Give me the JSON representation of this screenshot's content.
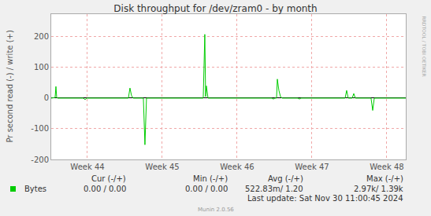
{
  "chart_data": {
    "type": "line",
    "title": "Disk throughput for /dev/zram0 - by month",
    "y_label": "Pr second read (-) / write (+)",
    "x": [
      44.016,
      44.068,
      44.079,
      44.089,
      44.1,
      44.447,
      44.468,
      44.489,
      45.047,
      45.068,
      45.089,
      45.111,
      45.247,
      45.268,
      45.289,
      46.047,
      46.068,
      46.079,
      46.089,
      46.111,
      46.963,
      46.984,
      47.005,
      47.026,
      47.037,
      47.058,
      47.079,
      47.1,
      47.311,
      47.332,
      47.353,
      47.942,
      47.963,
      47.984,
      48.037,
      48.058,
      48.079,
      48.289,
      48.311,
      48.332,
      48.753
    ],
    "series": [
      {
        "name": "Bytes",
        "color": "#00cc00",
        "values": [
          0,
          2,
          38,
          3,
          0,
          0,
          -5,
          0,
          0,
          33,
          8,
          0,
          0,
          -152,
          0,
          0,
          208,
          5,
          40,
          0,
          0,
          -3,
          0,
          0,
          62,
          25,
          5,
          0,
          0,
          -3,
          0,
          0,
          25,
          0,
          0,
          15,
          0,
          0,
          -40,
          0,
          0
        ]
      }
    ],
    "xlim": [
      44.016,
      48.753
    ],
    "xticks": [
      {
        "value": 44.5,
        "label": "Week 44"
      },
      {
        "value": 45.5,
        "label": "Week 45"
      },
      {
        "value": 46.5,
        "label": "Week 46"
      },
      {
        "value": 47.5,
        "label": "Week 47"
      },
      {
        "value": 48.5,
        "label": "Week 48"
      }
    ],
    "ylim": [
      -200,
      274
    ],
    "yticks": [
      -200,
      -100,
      0,
      100,
      200
    ],
    "grid": true,
    "stats": {
      "columns": [
        "Cur (-/+)",
        "Min (-/+)",
        "Avg (-/+)",
        "Max (-/+)"
      ],
      "rows": [
        {
          "name": "Bytes",
          "cells": [
            "0.00 / 0.00",
            "0.00 / 0.00",
            "522.83m/ 1.20",
            "2.97k/ 1.39k"
          ]
        }
      ]
    },
    "footer": "Last update: Sat Nov 30 11:00:45 2024",
    "credit": "Munin 2.0.56",
    "side_text": "RRDTOOL / TOBI OETIKER"
  }
}
